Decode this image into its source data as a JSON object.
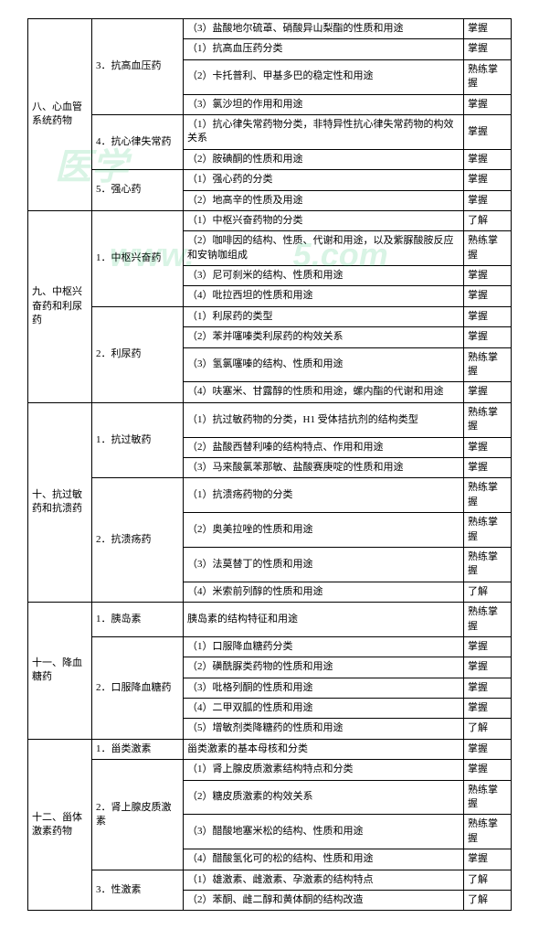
{
  "levels": {
    "master": "掌握",
    "skilled": "熟练掌握",
    "understand": "了解"
  },
  "sections": [
    {
      "title": "八、心血管系统药物",
      "groups": [
        {
          "title": "3．抗高血压药",
          "top": "（3）盐酸地尔硫䓬、硝酸异山梨酯的性质和用途",
          "toplvl": "掌握",
          "rows": [
            {
              "t": "（1）抗高血压药分类",
              "l": "掌握"
            },
            {
              "t": "（2）卡托普利、甲基多巴的稳定性和用途",
              "l": "熟练掌握"
            },
            {
              "t": "（3）氯沙坦的作用和用途",
              "l": "掌握"
            }
          ]
        },
        {
          "title": "4．抗心律失常药",
          "rows": [
            {
              "t": "（1）抗心律失常药物分类，非特异性抗心律失常药物的构效关系",
              "l": "掌握"
            },
            {
              "t": "（2）胺碘酮的性质和用途",
              "l": "掌握"
            }
          ]
        },
        {
          "title": "5．强心药",
          "rows": [
            {
              "t": "（1）强心药的分类",
              "l": "掌握"
            },
            {
              "t": "（2）地高辛的性质及用途",
              "l": "掌握"
            }
          ]
        }
      ]
    },
    {
      "title": "九、中枢兴奋药和利尿药",
      "groups": [
        {
          "title": "1．中枢兴奋药",
          "rows": [
            {
              "t": "（1）中枢兴奋药物的分类",
              "l": "了解"
            },
            {
              "t": "（2）咖啡因的结构、性质、代谢和用途，以及紫脲酸胺反应和安钠咖组成",
              "l": "熟练掌握"
            },
            {
              "t": "（3）尼可刹米的结构、性质和用途",
              "l": "掌握"
            },
            {
              "t": "（4）吡拉西坦的性质和用途",
              "l": "掌握"
            }
          ]
        },
        {
          "title": "2．利尿药",
          "rows": [
            {
              "t": "（1）利尿药的类型",
              "l": "掌握"
            },
            {
              "t": "（2）苯并噻嗪类利尿药的构效关系",
              "l": "掌握"
            },
            {
              "t": "（3）氢氯噻嗪的结构、性质和用途",
              "l": "熟练掌握"
            },
            {
              "t": "（4）呋塞米、甘露醇的性质和用途，螺内酯的代谢和用途",
              "l": "掌握"
            }
          ]
        }
      ]
    },
    {
      "title": "十、抗过敏药和抗溃药",
      "groups": [
        {
          "title": "1．抗过敏药",
          "rows": [
            {
              "t": "（1）抗过敏药物的分类，H1 受体拮抗剂的结构类型",
              "l": "熟练掌握"
            },
            {
              "t": "（2）盐酸西替利嗪的结构特点、作用和用途",
              "l": "掌握"
            },
            {
              "t": "（3）马来酸氯苯那敏、盐酸赛庚啶的性质和用途",
              "l": "掌握"
            }
          ]
        },
        {
          "title": "2．抗溃疡药",
          "rows": [
            {
              "t": "（1）抗溃疡药物的分类",
              "l": "熟练掌握"
            },
            {
              "t": "（2）奥美拉唑的性质和用途",
              "l": "熟练掌握"
            },
            {
              "t": "（3）法莫替丁的性质和用途",
              "l": "熟练掌握"
            },
            {
              "t": "（4）米索前列醇的性质和用途",
              "l": "了解"
            }
          ]
        }
      ]
    },
    {
      "title": "十一、降血糖药",
      "groups": [
        {
          "title": "1．胰岛素",
          "rows": [
            {
              "t": "胰岛素的结构特征和用途",
              "l": "熟练掌握"
            }
          ]
        },
        {
          "title": "2．口服降血糖药",
          "rows": [
            {
              "t": "（1）口服降血糖药分类",
              "l": "掌握"
            },
            {
              "t": "（2）磺酰脲类药物的性质和用途",
              "l": "掌握"
            },
            {
              "t": "（3）吡格列酮的性质和用途",
              "l": "掌握"
            },
            {
              "t": "（4）二甲双胍的性质和用途",
              "l": "掌握"
            },
            {
              "t": "（5）增敏剂类降糖药的性质和用途",
              "l": "了解"
            }
          ]
        }
      ]
    },
    {
      "title": "十二、甾体激素药物",
      "groups": [
        {
          "title": "1．甾类激素",
          "rows": [
            {
              "t": "甾类激素的基本母核和分类",
              "l": "掌握"
            }
          ]
        },
        {
          "title": "2．肾上腺皮质激素",
          "rows": [
            {
              "t": "（1）肾上腺皮质激素结构特点和分类",
              "l": "掌握"
            },
            {
              "t": "（2）糖皮质激素的构效关系",
              "l": "熟练掌握"
            },
            {
              "t": "（3）醋酸地塞米松的结构、性质和用途",
              "l": "熟练掌握"
            },
            {
              "t": "（4）醋酸氢化可的松的结构、性质和用途",
              "l": "掌握"
            }
          ]
        },
        {
          "title": "3．性激素",
          "rows": [
            {
              "t": "（1）雄激素、雌激素、孕激素的结构特点",
              "l": "了解"
            },
            {
              "t": "（2）苯酮、雌二醇和黄体酮的结构改造",
              "l": "了解"
            }
          ]
        }
      ]
    }
  ]
}
